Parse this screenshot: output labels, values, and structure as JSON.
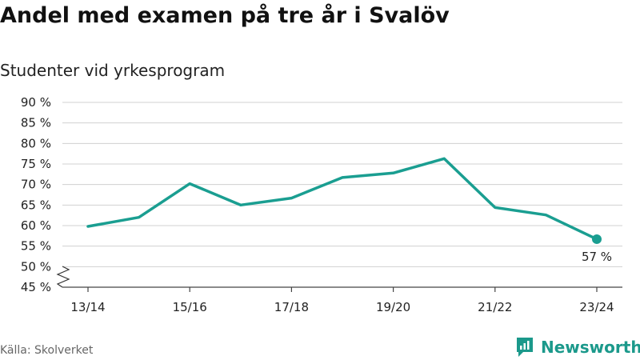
{
  "header": {
    "title": "Andel med examen på tre år i Svalöv",
    "subtitle": "Studenter vid yrkesprogram"
  },
  "footer": {
    "source": "Källa: Skolverket",
    "brand": "Newsworthy"
  },
  "colors": {
    "line": "#1a9e91",
    "grid": "#d0d0d0",
    "axis": "#444444",
    "brand": "#1b998b"
  },
  "chart_data": {
    "type": "line",
    "title": "Andel med examen på tre år i Svalöv",
    "subtitle": "Studenter vid yrkesprogram",
    "x_tick_labels": [
      "13/14",
      "15/16",
      "17/18",
      "19/20",
      "21/22",
      "23/24"
    ],
    "x": [
      "13/14",
      "14/15",
      "15/16",
      "16/17",
      "17/18",
      "18/19",
      "19/20",
      "20/21",
      "21/22",
      "22/23",
      "23/24"
    ],
    "values": [
      59.8,
      62.0,
      70.2,
      65.0,
      66.7,
      71.7,
      72.8,
      76.3,
      64.4,
      62.6,
      56.7
    ],
    "y_ticks": [
      45,
      50,
      55,
      60,
      65,
      70,
      75,
      80,
      85,
      90
    ],
    "y_tick_labels": [
      "45 %",
      "50 %",
      "55 %",
      "60 %",
      "65 %",
      "70 %",
      "75 %",
      "80 %",
      "85 %",
      "90 %"
    ],
    "ylim": [
      45,
      90
    ],
    "y_axis_break": true,
    "grid": true,
    "annotation": {
      "x": "23/24",
      "value": 56.7,
      "label": "57 %"
    }
  }
}
